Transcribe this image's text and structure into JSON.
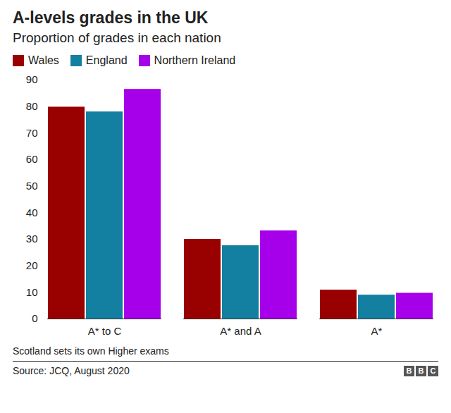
{
  "chart_data": {
    "type": "bar",
    "title": "A-levels grades in the UK",
    "subtitle": "Proportion of grades in each nation",
    "categories": [
      "A* to C",
      "A* and A",
      "A*"
    ],
    "series": [
      {
        "name": "Wales",
        "color": "#990000",
        "values": [
          79.8,
          30.0,
          10.9
        ]
      },
      {
        "name": "England",
        "color": "#1380a1",
        "values": [
          78.0,
          27.6,
          9.0
        ]
      },
      {
        "name": "Northern Ireland",
        "color": "#a600ea",
        "values": [
          86.5,
          33.2,
          9.7
        ]
      }
    ],
    "ylim": [
      0,
      90
    ],
    "yticks": [
      0,
      10,
      20,
      30,
      40,
      50,
      60,
      70,
      80,
      90
    ],
    "grid": false,
    "legend": "top-left",
    "data_labels": false,
    "note": "Scotland sets its own Higher exams",
    "source": "Source: JCQ, August 2020",
    "logo": "BBC"
  }
}
